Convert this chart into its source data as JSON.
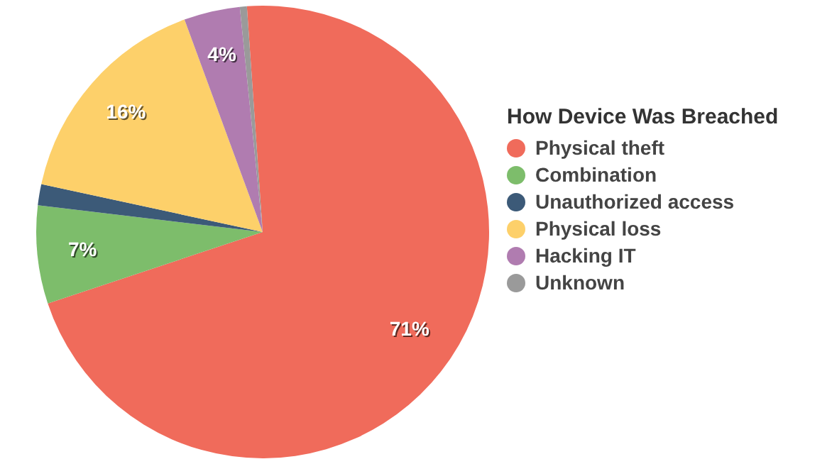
{
  "chart_data": {
    "type": "pie",
    "legend_title": "How Device Was Breached",
    "legend": "right",
    "categories": [
      "Physical theft",
      "Combination",
      "Unauthorized access",
      "Physical loss",
      "Hacking IT",
      "Unknown"
    ],
    "values": [
      71,
      7,
      1.5,
      16,
      4,
      0.5
    ],
    "colors": [
      "#f06b5b",
      "#7dbd6b",
      "#3c5a78",
      "#fdd06a",
      "#b07cb0",
      "#9a9a9a"
    ],
    "value_labels": [
      "71%",
      "7%",
      null,
      "16%",
      "4%",
      null
    ]
  }
}
